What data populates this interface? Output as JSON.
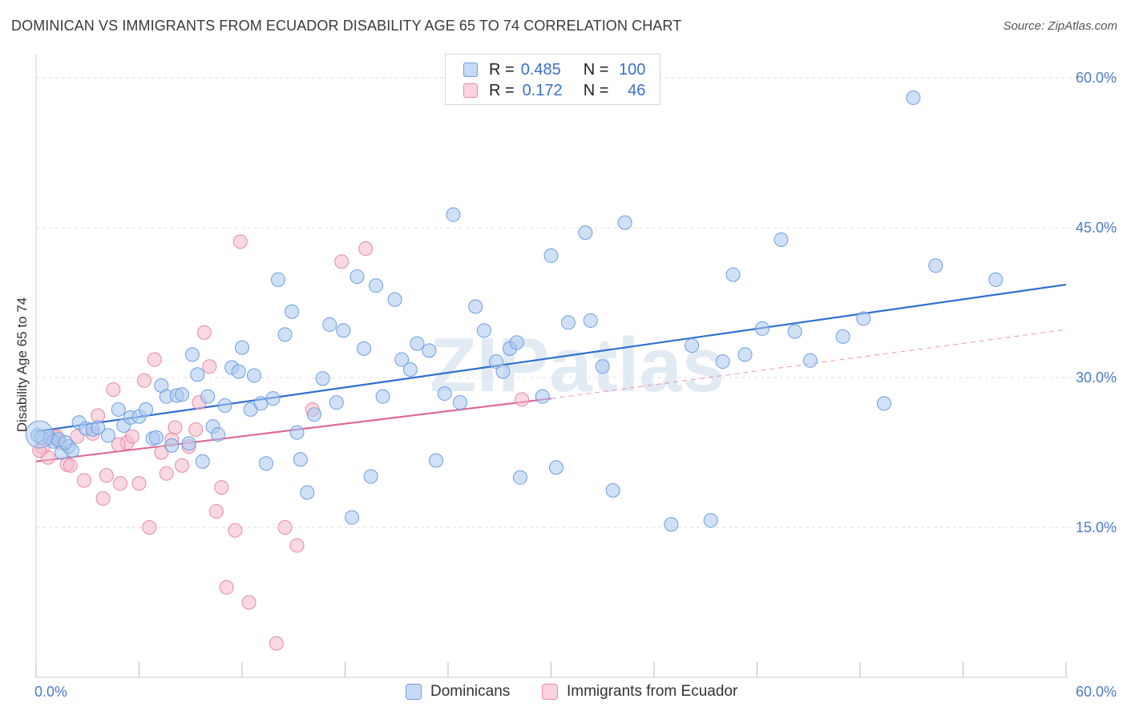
{
  "header": {
    "title": "DOMINICAN VS IMMIGRANTS FROM ECUADOR DISABILITY AGE 65 TO 74 CORRELATION CHART",
    "source": "Source: ZipAtlas.com"
  },
  "legend": {
    "rows": [
      {
        "r_label": "R =",
        "r_value": "0.485",
        "n_label": "N =",
        "n_value": "100",
        "color": "#a9c8f0"
      },
      {
        "r_label": "R =",
        "r_value": "0.172",
        "n_label": "N =",
        "n_value": "46",
        "color": "#f5b8ca"
      }
    ]
  },
  "bottom_legend": {
    "items": [
      {
        "label": "Dominicans",
        "color": "#a9c8f0"
      },
      {
        "label": "Immigrants from Ecuador",
        "color": "#f5b8ca"
      }
    ]
  },
  "watermark": "ZIPatlas",
  "chart_data": {
    "type": "scatter",
    "title": "DOMINICAN VS IMMIGRANTS FROM ECUADOR DISABILITY AGE 65 TO 74 CORRELATION CHART",
    "xlabel": "",
    "ylabel": "Disability Age 65 to 74",
    "xlim": [
      0,
      60
    ],
    "ylim": [
      0,
      60
    ],
    "x_tick_labels": [
      "0.0%",
      "60.0%"
    ],
    "y_ticks": [
      15,
      30,
      45,
      60
    ],
    "y_tick_labels": [
      "15.0%",
      "30.0%",
      "45.0%",
      "60.0%"
    ],
    "grid": true,
    "legend_position": "top-center",
    "series": [
      {
        "name": "Dominicans",
        "color": "#a9c8f0",
        "edge_color": "#6d9ee0",
        "line_color": "#2f6fd0",
        "trend": {
          "x0": 0,
          "y0": 24.6,
          "x1": 60,
          "y1": 39.3
        },
        "points": [
          [
            0.3,
            24.0
          ],
          [
            0.8,
            23.9
          ],
          [
            1.0,
            23.6
          ],
          [
            1.3,
            23.8
          ],
          [
            1.5,
            22.5
          ],
          [
            1.9,
            23.1
          ],
          [
            2.1,
            22.7
          ],
          [
            2.5,
            25.5
          ],
          [
            2.9,
            24.9
          ],
          [
            3.3,
            24.8
          ],
          [
            3.6,
            25.0
          ],
          [
            4.2,
            24.2
          ],
          [
            4.8,
            26.8
          ],
          [
            5.1,
            25.2
          ],
          [
            5.5,
            26.0
          ],
          [
            6.0,
            26.1
          ],
          [
            6.4,
            26.8
          ],
          [
            6.8,
            23.9
          ],
          [
            7.0,
            24.0
          ],
          [
            7.3,
            29.2
          ],
          [
            7.6,
            28.1
          ],
          [
            7.9,
            23.2
          ],
          [
            8.2,
            28.2
          ],
          [
            8.5,
            28.3
          ],
          [
            8.9,
            23.4
          ],
          [
            9.1,
            32.3
          ],
          [
            9.4,
            30.3
          ],
          [
            9.7,
            21.6
          ],
          [
            10.0,
            28.1
          ],
          [
            10.3,
            25.1
          ],
          [
            10.6,
            24.3
          ],
          [
            11.0,
            27.2
          ],
          [
            11.4,
            31.0
          ],
          [
            11.8,
            30.6
          ],
          [
            12.0,
            33.0
          ],
          [
            12.5,
            26.8
          ],
          [
            12.7,
            30.2
          ],
          [
            13.1,
            27.4
          ],
          [
            13.4,
            21.4
          ],
          [
            13.8,
            27.9
          ],
          [
            14.1,
            39.8
          ],
          [
            14.5,
            34.3
          ],
          [
            14.9,
            36.6
          ],
          [
            15.2,
            24.5
          ],
          [
            15.4,
            21.8
          ],
          [
            15.8,
            18.5
          ],
          [
            16.2,
            26.3
          ],
          [
            16.7,
            29.9
          ],
          [
            17.1,
            35.3
          ],
          [
            17.5,
            27.5
          ],
          [
            17.9,
            34.7
          ],
          [
            18.4,
            16.0
          ],
          [
            18.7,
            40.1
          ],
          [
            19.1,
            32.9
          ],
          [
            19.5,
            20.1
          ],
          [
            19.8,
            39.2
          ],
          [
            20.2,
            28.1
          ],
          [
            20.9,
            37.8
          ],
          [
            21.3,
            31.8
          ],
          [
            21.8,
            30.8
          ],
          [
            22.2,
            33.4
          ],
          [
            22.9,
            32.7
          ],
          [
            23.3,
            21.7
          ],
          [
            23.8,
            28.4
          ],
          [
            24.3,
            46.3
          ],
          [
            24.7,
            27.5
          ],
          [
            25.6,
            37.1
          ],
          [
            26.1,
            34.7
          ],
          [
            26.8,
            31.6
          ],
          [
            27.2,
            30.6
          ],
          [
            27.6,
            32.9
          ],
          [
            28.0,
            33.5
          ],
          [
            28.2,
            20.0
          ],
          [
            29.5,
            28.1
          ],
          [
            30.0,
            42.2
          ],
          [
            30.3,
            21.0
          ],
          [
            31.0,
            35.5
          ],
          [
            32.0,
            44.5
          ],
          [
            32.3,
            35.7
          ],
          [
            33.0,
            31.1
          ],
          [
            33.6,
            18.7
          ],
          [
            34.3,
            45.5
          ],
          [
            37.0,
            15.3
          ],
          [
            38.2,
            33.2
          ],
          [
            39.3,
            15.7
          ],
          [
            40.0,
            31.6
          ],
          [
            40.6,
            40.3
          ],
          [
            41.3,
            32.3
          ],
          [
            42.3,
            34.9
          ],
          [
            43.4,
            43.8
          ],
          [
            44.2,
            34.6
          ],
          [
            45.1,
            31.7
          ],
          [
            47.0,
            34.1
          ],
          [
            48.2,
            35.9
          ],
          [
            49.4,
            27.4
          ],
          [
            51.1,
            58.0
          ],
          [
            52.4,
            41.2
          ],
          [
            55.9,
            39.8
          ],
          [
            0.1,
            24.2
          ],
          [
            1.7,
            23.5
          ]
        ]
      },
      {
        "name": "Immigrants from Ecuador",
        "color": "#f5b8ca",
        "edge_color": "#e58aa6",
        "line_color": "#e0699a",
        "trend": {
          "x0": 0,
          "y0": 21.6,
          "x1": 30,
          "y1": 27.9
        },
        "trend_ext": {
          "x0": 30,
          "y0": 27.9,
          "x1": 60,
          "y1": 34.8
        },
        "points": [
          [
            0.4,
            23.0
          ],
          [
            0.7,
            22.0
          ],
          [
            1.1,
            24.0
          ],
          [
            1.4,
            23.5
          ],
          [
            1.8,
            21.3
          ],
          [
            2.0,
            21.2
          ],
          [
            2.4,
            24.1
          ],
          [
            2.8,
            19.7
          ],
          [
            3.3,
            24.4
          ],
          [
            3.6,
            26.2
          ],
          [
            3.9,
            17.9
          ],
          [
            4.1,
            20.2
          ],
          [
            4.5,
            28.8
          ],
          [
            4.9,
            19.4
          ],
          [
            5.3,
            23.5
          ],
          [
            5.6,
            24.1
          ],
          [
            6.0,
            19.4
          ],
          [
            6.3,
            29.7
          ],
          [
            6.6,
            15.0
          ],
          [
            6.9,
            31.8
          ],
          [
            7.3,
            22.5
          ],
          [
            7.6,
            20.4
          ],
          [
            7.9,
            23.8
          ],
          [
            8.1,
            25.0
          ],
          [
            8.5,
            21.2
          ],
          [
            8.9,
            23.1
          ],
          [
            9.3,
            24.8
          ],
          [
            9.5,
            27.5
          ],
          [
            9.8,
            34.5
          ],
          [
            10.1,
            31.1
          ],
          [
            10.5,
            16.6
          ],
          [
            10.8,
            19.0
          ],
          [
            11.1,
            9.0
          ],
          [
            11.6,
            14.7
          ],
          [
            11.9,
            43.6
          ],
          [
            12.4,
            7.5
          ],
          [
            14.0,
            3.4
          ],
          [
            14.5,
            15.0
          ],
          [
            15.2,
            13.2
          ],
          [
            16.1,
            26.8
          ],
          [
            17.8,
            41.6
          ],
          [
            19.2,
            42.9
          ],
          [
            28.3,
            27.8
          ],
          [
            0.2,
            22.7
          ],
          [
            1.2,
            24.1
          ],
          [
            4.8,
            23.3
          ]
        ]
      }
    ]
  }
}
